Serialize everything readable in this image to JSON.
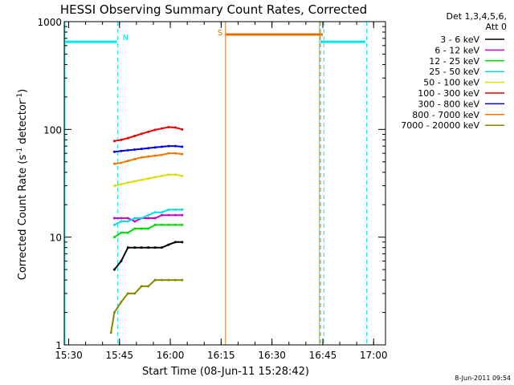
{
  "chart_data": {
    "type": "line",
    "title": "HESSI Observing Summary Count Rates, Corrected",
    "xlabel": "Start Time (08-Jun-11 15:28:42)",
    "ylabel_main": "Corrected Count Rate (s",
    "ylabel_sup1": "-1",
    "ylabel_mid": " detector",
    "ylabel_sup2": "-1",
    "ylabel_end": ")",
    "y_log": true,
    "ylim": [
      1,
      1000
    ],
    "xlim_min": [
      928.7,
      1023.5
    ],
    "x_ticks": [
      {
        "m": 930,
        "label": "15:30"
      },
      {
        "m": 945,
        "label": "15:45"
      },
      {
        "m": 960,
        "label": "16:00"
      },
      {
        "m": 975,
        "label": "16:15"
      },
      {
        "m": 990,
        "label": "16:30"
      },
      {
        "m": 1005,
        "label": "16:45"
      },
      {
        "m": 1020,
        "label": "17:00"
      }
    ],
    "y_ticks": [
      {
        "v": 1,
        "label": "1"
      },
      {
        "v": 10,
        "label": "10"
      },
      {
        "v": 100,
        "label": "100"
      },
      {
        "v": 1000,
        "label": "1000"
      }
    ],
    "detector_info": [
      "Det 1,3,4,5,6,",
      "Att 0"
    ],
    "footer_date": "8-Jun-2011 09:54",
    "series": [
      {
        "name": "3 - 6 keV",
        "color": "#000000",
        "x": [
          943.5,
          945.5,
          947.5,
          949.5,
          951.5,
          953.5,
          955.5,
          957.5,
          959.5,
          961.5,
          963.5
        ],
        "y": [
          5,
          6,
          8,
          8,
          8,
          8,
          8,
          8,
          8.5,
          9,
          9
        ]
      },
      {
        "name": "6 - 12 keV",
        "color": "#cc00cc",
        "x": [
          943.5,
          945.5,
          947.5,
          949.5,
          951.5,
          953.5,
          955.5,
          957.5,
          959.5,
          961.5,
          963.5
        ],
        "y": [
          15,
          15,
          15,
          14,
          15,
          15,
          15,
          16,
          16,
          16,
          16
        ]
      },
      {
        "name": "12 - 25 keV",
        "color": "#00dd00",
        "x": [
          943.5,
          945.5,
          947.5,
          949.5,
          951.5,
          953.5,
          955.5,
          957.5,
          959.5,
          961.5,
          963.5
        ],
        "y": [
          10,
          11,
          11,
          12,
          12,
          12,
          13,
          13,
          13,
          13,
          13
        ]
      },
      {
        "name": "25 - 50 keV",
        "color": "#00e0e0",
        "x": [
          943.5,
          945.5,
          947.5,
          949.5,
          951.5,
          953.5,
          955.5,
          957.5,
          959.5,
          961.5,
          963.5
        ],
        "y": [
          13,
          14,
          14,
          15,
          15,
          16,
          17,
          17,
          18,
          18,
          18
        ]
      },
      {
        "name": "50 - 100 keV",
        "color": "#dddd00",
        "x": [
          943.5,
          945.5,
          947.5,
          949.5,
          951.5,
          953.5,
          955.5,
          957.5,
          959.5,
          961.5,
          963.5
        ],
        "y": [
          30,
          31,
          32,
          33,
          34,
          35,
          36,
          37,
          38,
          38,
          37
        ]
      },
      {
        "name": "100 - 300 keV",
        "color": "#ee0000",
        "x": [
          943.5,
          945.5,
          947.5,
          949.5,
          951.5,
          953.5,
          955.5,
          957.5,
          959.5,
          961.5,
          963.5
        ],
        "y": [
          78,
          80,
          83,
          87,
          91,
          95,
          99,
          102,
          105,
          104,
          100
        ]
      },
      {
        "name": "300 - 800 keV",
        "color": "#0000ee",
        "x": [
          943.5,
          945.5,
          947.5,
          949.5,
          951.5,
          953.5,
          955.5,
          957.5,
          959.5,
          961.5,
          963.5
        ],
        "y": [
          62,
          63,
          64,
          65,
          66,
          67,
          68,
          69,
          70,
          70,
          69
        ]
      },
      {
        "name": "800 - 7000 keV",
        "color": "#ee7700",
        "x": [
          943.5,
          945.5,
          947.5,
          949.5,
          951.5,
          953.5,
          955.5,
          957.5,
          959.5,
          961.5,
          963.5
        ],
        "y": [
          48,
          49,
          51,
          53,
          55,
          56,
          57,
          58,
          60,
          60,
          59
        ]
      },
      {
        "name": "7000 - 20000 keV",
        "color": "#888800",
        "x": [
          942.5,
          943.5,
          945.5,
          947.5,
          949.5,
          951.5,
          953.5,
          955.5,
          957.5,
          959.5,
          961.5,
          963.5
        ],
        "y": [
          1.3,
          2,
          2.5,
          3,
          3,
          3.5,
          3.5,
          4,
          4,
          4,
          4,
          4
        ]
      }
    ],
    "annotations": {
      "night_label": "N",
      "saa_label": "S",
      "night_level": 650,
      "saa_level": 760,
      "night_intervals": [
        [
          928.7,
          944.2
        ],
        [
          1004.3,
          1017.5
        ]
      ],
      "night_dashes": [
        944.5,
        1005.3,
        1017.9
      ],
      "saa_interval": [
        976.3,
        1005.0
      ],
      "saa_line": 976.3,
      "saa_dash": 1004.3,
      "cyan_solid": [
        928.9,
        1004.0
      ],
      "night_color": "#00e5e5",
      "saa_color": "#e07000"
    }
  }
}
